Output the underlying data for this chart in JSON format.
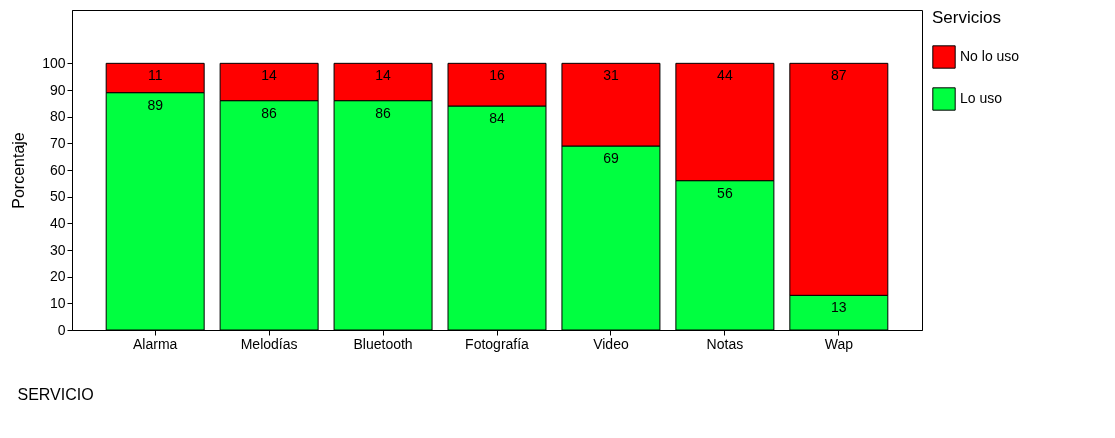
{
  "chart_data": {
    "type": "bar",
    "stacked": true,
    "xlabel": "SERVICIO",
    "ylabel": "Porcentaje",
    "legend_title": "Servicios",
    "legend": "right",
    "data_labels": true,
    "grid": false,
    "categories": [
      "Alarma",
      "Melodías",
      "Bluetooth",
      "Fotografía",
      "Video",
      "Notas",
      "Wap"
    ],
    "series": [
      {
        "name": "Lo uso",
        "color": "#00ff40",
        "values": [
          89,
          86,
          86,
          84,
          69,
          56,
          13
        ]
      },
      {
        "name": "No lo uso",
        "color": "#ff0000",
        "values": [
          11,
          14,
          14,
          16,
          31,
          44,
          87
        ]
      }
    ],
    "ylim": [
      0,
      120
    ],
    "yticks": [
      0,
      10,
      20,
      30,
      40,
      50,
      60,
      70,
      80,
      90,
      100
    ]
  }
}
